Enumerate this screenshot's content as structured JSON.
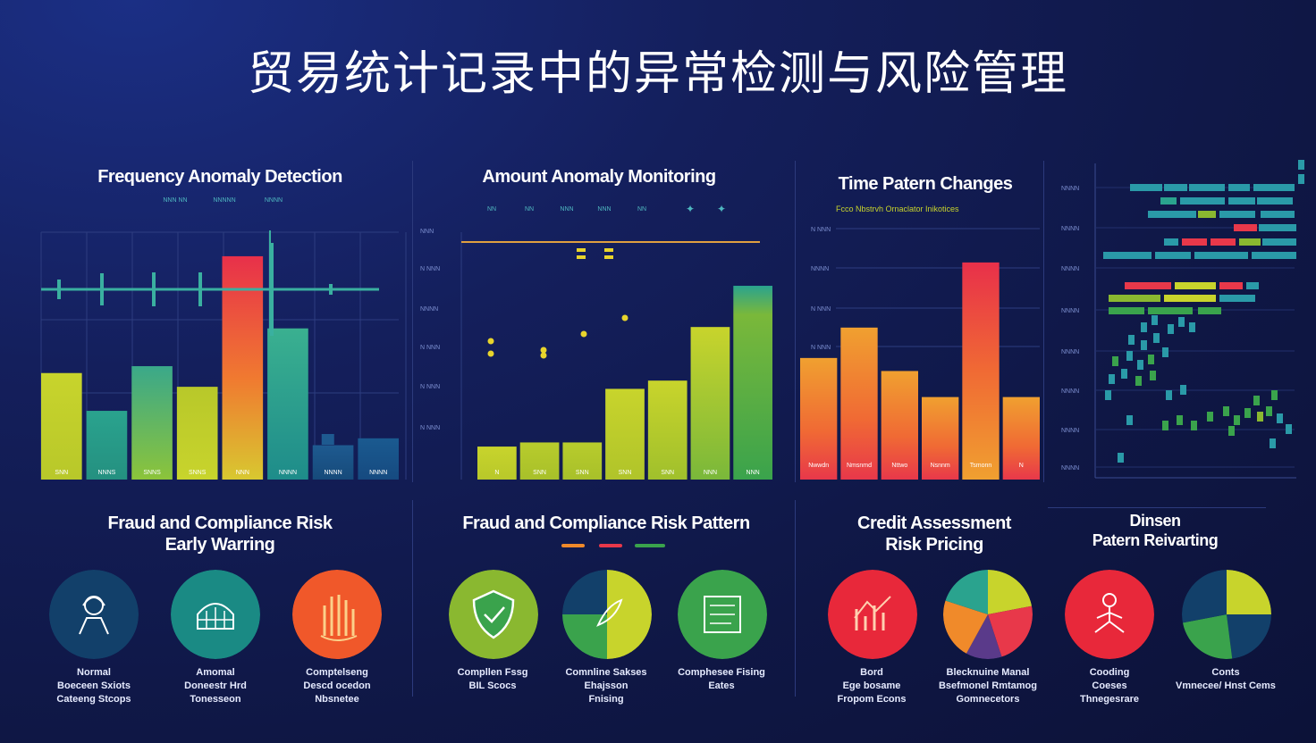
{
  "title": "贸易统计记录中的异常检测与风险管理",
  "panels": {
    "p1": {
      "title": "Frequency Anomaly Detection",
      "sub": [
        "NNN NN",
        "NNNNN",
        "NNNN"
      ]
    },
    "p2": {
      "title": "Amount Anomaly Monitoring",
      "sub": [
        "NN",
        "NN",
        "NNN",
        "NNN",
        "NN"
      ]
    },
    "p3": {
      "title": "Time Patern Changes",
      "sub": "Fcco Nbstrvh Ornaclator Inikotices"
    },
    "p4": {
      "title_line1": "Fraud and Compliance Risk",
      "title_line2": "Early Warring"
    },
    "p5": {
      "title": "Fraud and Compliance Risk Pattern"
    },
    "p6": {
      "title_line1": "Credit Assessment",
      "title_line2": "Risk Pricing"
    },
    "p7": {
      "title_line1": "Dinsen",
      "title_line2": "Patern Reivarting"
    }
  },
  "colors": {
    "yellow": "#c8d42c",
    "teal": "#2aa38e",
    "red": "#e8384a",
    "orange": "#f08a2a",
    "green": "#3aa34c",
    "navy": "#12406a",
    "line": "#3ab0a0"
  },
  "chart_data": [
    {
      "type": "bar",
      "title": "Frequency Anomaly Detection",
      "categories": [
        "SNN",
        "NNNS",
        "SNNS",
        "SNNS",
        "NNN",
        "NNNN",
        "NNNN",
        "NNNN"
      ],
      "values": [
        31,
        20,
        33,
        27,
        65,
        44,
        10,
        12
      ],
      "ylim": [
        0,
        72
      ]
    },
    {
      "type": "bar",
      "title": "Amount Anomaly Monitoring",
      "categories": [
        "N",
        "SNN",
        "SNN",
        "SNN",
        "SNN",
        "NNN",
        "NNN"
      ],
      "values": [
        8,
        9,
        9,
        22,
        24,
        37,
        47
      ],
      "yticks": [
        "NNN",
        "N NNN",
        "NNNN",
        "N NNN",
        "N NNN",
        "N NNN"
      ],
      "ylim": [
        0,
        60
      ]
    },
    {
      "type": "bar",
      "title": "Time Patern Changes",
      "categories": [
        "Nwwdn",
        "Nmsnmd",
        "Nttwo",
        "Nsnnm",
        "Tsmonn",
        "N"
      ],
      "values": [
        28,
        35,
        25,
        19,
        50,
        19
      ],
      "yticks": [
        "N NNN",
        "NNNN",
        "N NNN",
        "N NNN"
      ],
      "ylim": [
        0,
        58
      ]
    },
    {
      "type": "heatmap",
      "yticks": [
        "NNNN",
        "NNNN",
        "NNNN",
        "NNNN",
        "NNNN",
        "NNNN",
        "NNNN",
        "NNNN"
      ]
    }
  ],
  "circles": [
    {
      "icon": "worker-icon",
      "color": "#12406a",
      "caption": [
        "Normal",
        "Boeceen Sxiots",
        "Cateeng Stcops"
      ]
    },
    {
      "icon": "dome-icon",
      "color": "#1a8a84",
      "caption": [
        "Amomal",
        "Doneestr Hrd",
        "Tonesseon"
      ]
    },
    {
      "icon": "hand-icon",
      "color": "#f0582a",
      "caption": [
        "Comptelseng",
        "Descd ocedon",
        "Nbsnetee"
      ]
    },
    {
      "icon": "shield-icon",
      "color": "#8ab830",
      "caption": [
        "Compllen Fssg",
        "BIL Scocs"
      ]
    },
    {
      "icon": "pie-icon",
      "color": "pie1",
      "caption": [
        "Comnline Sakses",
        "Ehajsson",
        "Fnising"
      ]
    },
    {
      "icon": "checklist-icon",
      "color": "#3aa34c",
      "caption": [
        "Comphesee Fising",
        "Eates"
      ]
    },
    {
      "icon": "graph-icon",
      "color": "#e8283a",
      "caption": [
        "Bord",
        "Ege bosame",
        "Fropom Econs"
      ]
    },
    {
      "icon": "pie-icon",
      "color": "pie2",
      "caption": [
        "Blecknuine Manal",
        "Bsefmonel Rmtamog",
        "Gomnecetors"
      ]
    },
    {
      "icon": "figure-icon",
      "color": "#e8283a",
      "caption": [
        "Cooding",
        "Coeses",
        "Thnegesrare"
      ]
    },
    {
      "icon": "pie-icon",
      "color": "pie3",
      "caption": [
        "Conts",
        "Vmnecee/ Hnst Cems"
      ]
    }
  ]
}
